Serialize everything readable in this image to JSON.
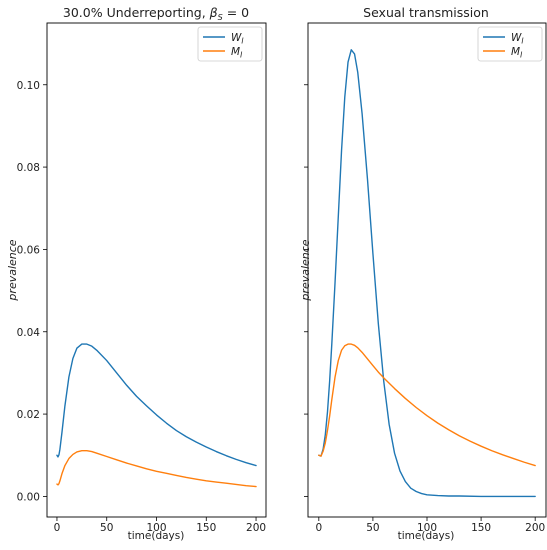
{
  "chart_data": [
    {
      "type": "line",
      "title": "30.0% Underreporting, β_S = 0",
      "xlabel": "time(days)",
      "ylabel": "prevalence",
      "xlim": [
        -10,
        210
      ],
      "ylim": [
        -0.005,
        0.115
      ],
      "xticks": [
        0,
        50,
        100,
        150,
        200
      ],
      "yticks": [
        0.0,
        0.02,
        0.04,
        0.06,
        0.08,
        0.1
      ],
      "ytick_labels": [
        "0.00",
        "0.02",
        "0.04",
        "0.06",
        "0.08",
        "0.10"
      ],
      "legend": "top-right",
      "grid": false,
      "series": [
        {
          "name": "W_I",
          "color": "#1f77b4",
          "x": [
            0,
            1,
            2,
            3,
            5,
            8,
            12,
            16,
            20,
            25,
            30,
            35,
            40,
            50,
            60,
            70,
            80,
            90,
            100,
            110,
            120,
            130,
            140,
            150,
            160,
            170,
            180,
            190,
            200
          ],
          "y": [
            0.01,
            0.0096,
            0.0101,
            0.0115,
            0.0155,
            0.022,
            0.029,
            0.0335,
            0.036,
            0.037,
            0.037,
            0.0365,
            0.0355,
            0.033,
            0.03,
            0.027,
            0.0243,
            0.022,
            0.0198,
            0.0178,
            0.016,
            0.0145,
            0.0132,
            0.012,
            0.0109,
            0.0099,
            0.009,
            0.0082,
            0.0075
          ]
        },
        {
          "name": "M_I",
          "color": "#ff7f0e",
          "x": [
            0,
            1,
            2,
            3,
            5,
            8,
            12,
            16,
            20,
            25,
            30,
            35,
            40,
            50,
            60,
            70,
            80,
            90,
            100,
            110,
            120,
            130,
            140,
            150,
            160,
            170,
            180,
            190,
            200
          ],
          "y": [
            0.003,
            0.0028,
            0.0031,
            0.0038,
            0.0055,
            0.0075,
            0.0092,
            0.0102,
            0.0108,
            0.0111,
            0.0111,
            0.0109,
            0.0105,
            0.0097,
            0.0089,
            0.0081,
            0.0074,
            0.0067,
            0.0061,
            0.0056,
            0.0051,
            0.0046,
            0.0042,
            0.0038,
            0.0035,
            0.0032,
            0.0029,
            0.0026,
            0.0024
          ]
        }
      ]
    },
    {
      "type": "line",
      "title": "Sexual transmission",
      "xlabel": "time(days)",
      "ylabel": "prevalence",
      "xlim": [
        -10,
        210
      ],
      "ylim": [
        -0.005,
        0.115
      ],
      "xticks": [
        0,
        50,
        100,
        150,
        200
      ],
      "legend": "top-right",
      "grid": false,
      "series": [
        {
          "name": "W_I",
          "color": "#1f77b4",
          "x": [
            0,
            2,
            4,
            6,
            8,
            10,
            12,
            15,
            18,
            21,
            24,
            27,
            30,
            33,
            36,
            40,
            45,
            50,
            55,
            60,
            65,
            70,
            75,
            80,
            85,
            90,
            95,
            100,
            110,
            120,
            130,
            150,
            175,
            200
          ],
          "y": [
            0.01,
            0.0098,
            0.0115,
            0.015,
            0.0205,
            0.028,
            0.037,
            0.052,
            0.068,
            0.084,
            0.097,
            0.1055,
            0.1085,
            0.1075,
            0.103,
            0.093,
            0.077,
            0.059,
            0.042,
            0.028,
            0.0175,
            0.0105,
            0.0062,
            0.0036,
            0.002,
            0.0012,
            0.0007,
            0.0004,
            0.0002,
            0.0001,
            0.0001,
            0.0,
            0.0,
            0.0
          ]
        },
        {
          "name": "M_I",
          "color": "#ff7f0e",
          "x": [
            0,
            2,
            4,
            6,
            8,
            10,
            12,
            15,
            18,
            21,
            24,
            27,
            30,
            33,
            36,
            40,
            45,
            50,
            55,
            60,
            70,
            80,
            90,
            100,
            110,
            120,
            130,
            140,
            150,
            160,
            170,
            180,
            190,
            200
          ],
          "y": [
            0.01,
            0.0098,
            0.011,
            0.013,
            0.016,
            0.0195,
            0.0235,
            0.029,
            0.033,
            0.0355,
            0.0366,
            0.037,
            0.037,
            0.0367,
            0.0361,
            0.035,
            0.0334,
            0.0318,
            0.0302,
            0.0288,
            0.0262,
            0.0238,
            0.0216,
            0.0196,
            0.0178,
            0.0162,
            0.0147,
            0.0134,
            0.0122,
            0.0111,
            0.0101,
            0.0092,
            0.0083,
            0.0075
          ]
        }
      ]
    }
  ]
}
